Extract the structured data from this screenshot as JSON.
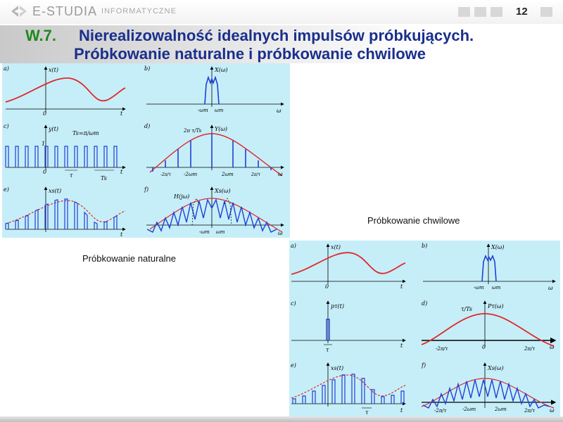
{
  "header": {
    "logo_main": "E-STUDIA",
    "logo_sub": "INFORMATYCZNE",
    "page_number": "12"
  },
  "title": {
    "number": "W.7.",
    "line1": "Nierealizowalność idealnych impulsów próbkujących.",
    "line2": "Próbkowanie naturalne i próbkowanie chwilowe"
  },
  "captions": {
    "natural": "Próbkowanie naturalne",
    "instant": "Próbkowanie chwilowe"
  },
  "figure1": {
    "panels": [
      "a)",
      "b)",
      "c)",
      "d)",
      "e)",
      "f)"
    ],
    "labels": {
      "xt": "x(t)",
      "Xw": "X(ω)",
      "yt": "y(t)",
      "Yw": "Y(ω)",
      "xst": "xs(t)",
      "Xsw": "Xs(ω)",
      "Ts_eq": "Ts=π/ωm",
      "Hjw": "H(jω)",
      "amp": "2π τ/Ts",
      "zero": "0",
      "one": "1",
      "t": "t",
      "omega": "ω",
      "minus_wm": "-ωm",
      "wm": "ωm",
      "minus_2wm": "-2ωm",
      "two_wm": "2ωm",
      "minus_2pi_tau": "-2π/τ",
      "two_pi_tau": "2π/τ",
      "tau": "τ",
      "Ts": "Ts"
    }
  },
  "figure2": {
    "panels": [
      "a)",
      "b)",
      "c)",
      "d)",
      "e)",
      "f)"
    ],
    "labels": {
      "xt": "x(t)",
      "Xw": "X(ω)",
      "pt": "pτ(t)",
      "Pw": "Pτ(ω)",
      "xst": "xs(t)",
      "Xsw": "Xs(ω)",
      "tau_Ts": "τ/Ts",
      "zero": "0",
      "t": "t",
      "omega": "ω",
      "minus_wm": "-ωm",
      "wm": "ωm",
      "minus_2wm": "-2ωm",
      "two_wm": "2ωm",
      "minus_2pi_tau": "-2π/τ",
      "two_pi_tau": "2π/τ",
      "tau": "τ"
    }
  }
}
